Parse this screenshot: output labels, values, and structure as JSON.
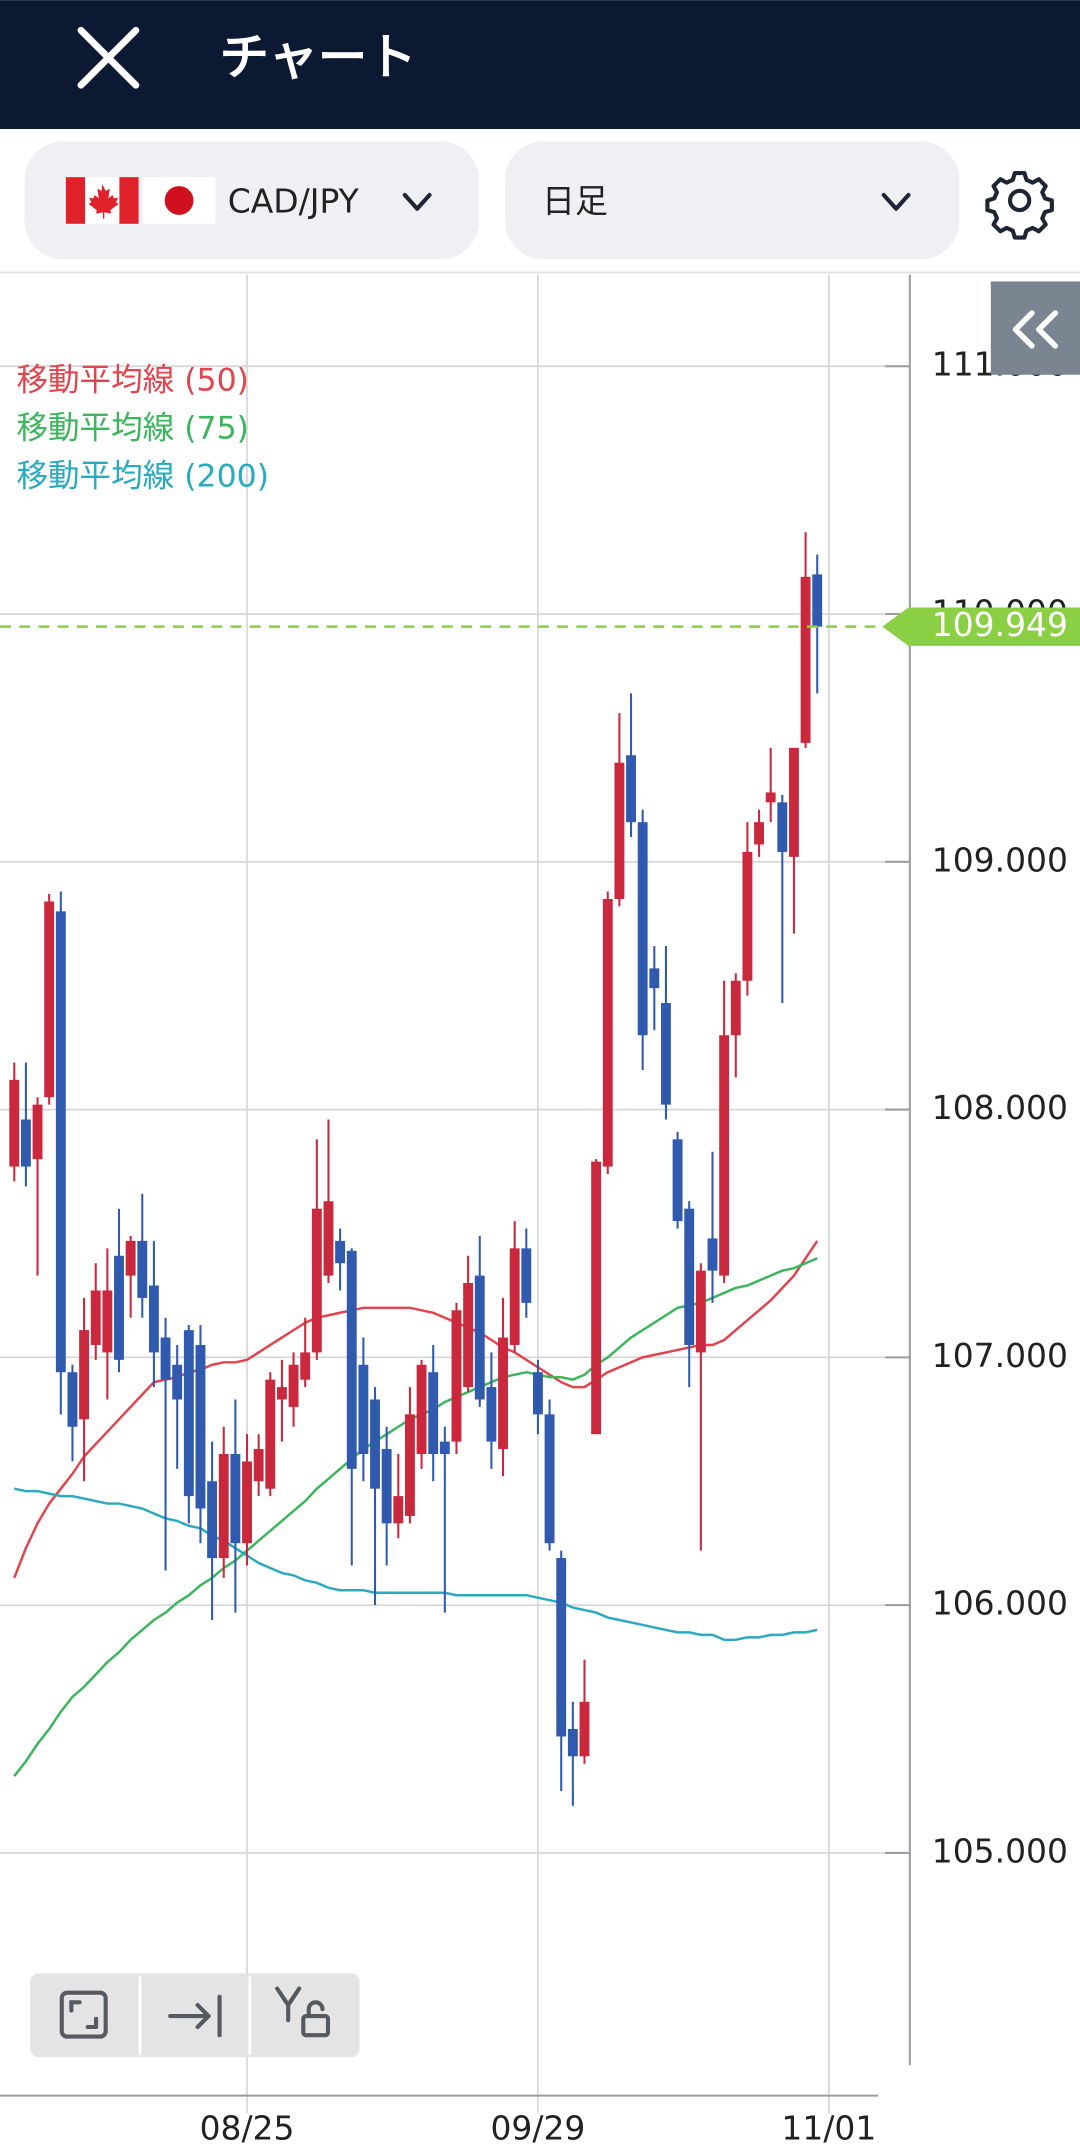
{
  "header": {
    "title": "チャート"
  },
  "toolbar": {
    "pair": "CAD/JPY",
    "timeframe": "日足"
  },
  "chart_data": {
    "type": "candlestick",
    "categories": [
      null,
      null,
      null,
      null,
      null,
      null,
      null,
      null,
      null,
      null,
      null,
      null,
      null,
      null,
      null,
      null,
      null,
      null,
      null,
      null,
      "08/25",
      null,
      null,
      null,
      null,
      null,
      null,
      null,
      null,
      null,
      null,
      null,
      null,
      null,
      null,
      null,
      null,
      null,
      null,
      null,
      null,
      null,
      null,
      null,
      null,
      "09/29",
      null,
      null,
      null,
      null,
      null,
      null,
      null,
      null,
      null,
      null,
      null,
      null,
      null,
      null,
      null,
      null,
      null,
      null,
      null,
      null,
      null,
      null,
      null,
      null,
      "11/01"
    ],
    "open": [
      107.77,
      107.96,
      107.8,
      108.05,
      108.8,
      106.94,
      106.75,
      107.05,
      107.02,
      107.41,
      107.33,
      107.47,
      107.29,
      107.08,
      106.97,
      107.11,
      107.05,
      106.5,
      106.19,
      106.61,
      106.25,
      106.5,
      106.47,
      106.83,
      106.8,
      106.91,
      107.02,
      107.33,
      107.47,
      107.43,
      106.97,
      106.83,
      106.63,
      106.33,
      106.36,
      106.61,
      106.94,
      106.66,
      106.66,
      106.88,
      107.33,
      106.88,
      106.63,
      107.05,
      107.44,
      106.94,
      106.77,
      106.19,
      105.5,
      105.39,
      106.69,
      107.77,
      108.85,
      109.43,
      109.16,
      108.57,
      108.43,
      107.88,
      107.6,
      107.02,
      107.48,
      107.33,
      108.3,
      108.52,
      109.07,
      109.24,
      109.24,
      109.02,
      109.48,
      110.16,
      null
    ],
    "high": [
      108.19,
      108.19,
      108.05,
      108.87,
      108.88,
      106.97,
      107.24,
      107.38,
      107.44,
      107.6,
      107.49,
      107.66,
      107.47,
      107.16,
      107.05,
      107.13,
      107.13,
      106.66,
      106.72,
      106.83,
      106.69,
      106.69,
      106.94,
      106.99,
      107.02,
      107.16,
      107.88,
      107.96,
      107.52,
      107.44,
      107.08,
      106.88,
      106.72,
      106.61,
      106.88,
      106.99,
      107.05,
      106.72,
      107.22,
      107.41,
      107.49,
      107.02,
      107.24,
      107.55,
      107.52,
      106.99,
      106.83,
      106.22,
      105.61,
      105.78,
      107.8,
      108.88,
      109.6,
      109.68,
      109.21,
      108.66,
      108.66,
      107.91,
      107.63,
      107.38,
      107.83,
      108.52,
      108.55,
      109.16,
      109.21,
      109.46,
      109.27,
      109.46,
      110.33,
      110.24,
      null
    ],
    "low": [
      107.71,
      107.69,
      107.33,
      108.02,
      106.77,
      106.58,
      106.5,
      106.99,
      106.83,
      106.94,
      107.16,
      107.16,
      106.88,
      106.14,
      106.55,
      106.33,
      106.25,
      105.94,
      106.11,
      105.97,
      106.16,
      106.44,
      106.44,
      106.66,
      106.72,
      106.88,
      106.99,
      107.3,
      107.27,
      106.16,
      106.5,
      106.0,
      106.16,
      106.27,
      106.33,
      106.55,
      106.5,
      105.97,
      106.61,
      106.86,
      106.8,
      106.55,
      106.52,
      107.02,
      107.16,
      106.69,
      106.22,
      105.25,
      105.19,
      105.36,
      106.69,
      107.74,
      108.82,
      109.1,
      108.16,
      108.32,
      107.96,
      107.52,
      106.88,
      106.22,
      107.22,
      107.3,
      108.13,
      108.46,
      109.02,
      109.16,
      108.43,
      108.71,
      109.46,
      109.68,
      null
    ],
    "close": [
      108.12,
      107.77,
      108.02,
      108.84,
      106.94,
      106.72,
      107.11,
      107.27,
      107.27,
      106.99,
      107.47,
      107.24,
      107.02,
      106.91,
      106.83,
      106.44,
      106.39,
      106.19,
      106.61,
      106.25,
      106.58,
      106.63,
      106.91,
      106.88,
      106.97,
      107.02,
      107.6,
      107.63,
      107.38,
      106.55,
      106.61,
      106.47,
      106.33,
      106.44,
      106.77,
      106.97,
      106.61,
      106.61,
      107.19,
      107.3,
      106.83,
      106.66,
      107.08,
      107.44,
      107.22,
      106.77,
      106.25,
      105.47,
      105.39,
      105.61,
      107.79,
      108.85,
      109.4,
      109.16,
      108.3,
      108.49,
      108.02,
      107.55,
      107.05,
      107.35,
      107.35,
      108.3,
      108.52,
      109.04,
      109.16,
      109.28,
      109.04,
      109.46,
      110.15,
      109.949,
      null
    ],
    "up_color": "#c9283d",
    "down_color": "#2f5aae",
    "moving_averages": [
      {
        "name": "移動平均線 (50)",
        "color": "#e0454f",
        "values": [
          106.11,
          106.23,
          106.33,
          106.41,
          106.47,
          106.53,
          106.6,
          106.65,
          106.7,
          106.75,
          106.8,
          106.85,
          106.9,
          106.91,
          106.92,
          106.94,
          106.95,
          106.97,
          106.98,
          106.98,
          106.99,
          107.02,
          107.05,
          107.08,
          107.11,
          107.14,
          107.16,
          107.17,
          107.18,
          107.19,
          107.2,
          107.2,
          107.2,
          107.2,
          107.2,
          107.19,
          107.18,
          107.16,
          107.14,
          107.12,
          107.1,
          107.07,
          107.04,
          107.02,
          106.99,
          106.96,
          106.93,
          106.9,
          106.88,
          106.88,
          106.91,
          106.94,
          106.96,
          106.98,
          107.0,
          107.01,
          107.02,
          107.03,
          107.04,
          107.05,
          107.05,
          107.07,
          107.11,
          107.15,
          107.19,
          107.23,
          107.28,
          107.33,
          107.4,
          107.47,
          null
        ]
      },
      {
        "name": "移動平均線 (75)",
        "color": "#3cb55c",
        "values": [
          105.31,
          105.37,
          105.44,
          105.5,
          105.57,
          105.63,
          105.67,
          105.72,
          105.77,
          105.81,
          105.86,
          105.9,
          105.94,
          105.97,
          106.01,
          106.04,
          106.08,
          106.11,
          106.15,
          106.18,
          106.22,
          106.26,
          106.3,
          106.34,
          106.38,
          106.42,
          106.47,
          106.51,
          106.55,
          106.59,
          106.63,
          106.66,
          106.69,
          106.72,
          106.75,
          106.77,
          106.79,
          106.82,
          106.84,
          106.86,
          106.88,
          106.9,
          106.92,
          106.93,
          106.94,
          106.93,
          106.92,
          106.92,
          106.91,
          106.93,
          106.97,
          107.0,
          107.04,
          107.08,
          107.11,
          107.14,
          107.17,
          107.2,
          107.21,
          107.22,
          107.24,
          107.26,
          107.28,
          107.29,
          107.31,
          107.33,
          107.35,
          107.36,
          107.38,
          107.4,
          null
        ]
      },
      {
        "name": "移動平均線 (200)",
        "color": "#2aa9bf",
        "values": [
          106.47,
          106.46,
          106.46,
          106.45,
          106.44,
          106.44,
          106.43,
          106.42,
          106.41,
          106.41,
          106.4,
          106.39,
          106.37,
          106.35,
          106.34,
          106.32,
          106.31,
          106.28,
          106.26,
          106.23,
          106.2,
          106.17,
          106.15,
          106.13,
          106.12,
          106.1,
          106.09,
          106.07,
          106.06,
          106.06,
          106.06,
          106.05,
          106.05,
          106.05,
          106.05,
          106.05,
          106.05,
          106.05,
          106.04,
          106.04,
          106.04,
          106.04,
          106.04,
          106.04,
          106.04,
          106.03,
          106.02,
          106.01,
          105.99,
          105.98,
          105.97,
          105.95,
          105.94,
          105.93,
          105.92,
          105.91,
          105.9,
          105.89,
          105.89,
          105.88,
          105.88,
          105.86,
          105.86,
          105.87,
          105.87,
          105.88,
          105.88,
          105.89,
          105.89,
          105.9,
          null
        ]
      }
    ],
    "current_price": 109.949,
    "current_price_color": "#8bcf45",
    "ylim": [
      104.17,
      111.37
    ],
    "yticks": [
      {
        "value": 105,
        "label": "105.000"
      },
      {
        "value": 106,
        "label": "106.000"
      },
      {
        "value": 107,
        "label": "107.000"
      },
      {
        "value": 108,
        "label": "108.000"
      },
      {
        "value": 109,
        "label": "109.000"
      },
      {
        "value": 110,
        "label": "110.000"
      },
      {
        "value": 111,
        "label": "111.000"
      }
    ],
    "grid": true
  }
}
